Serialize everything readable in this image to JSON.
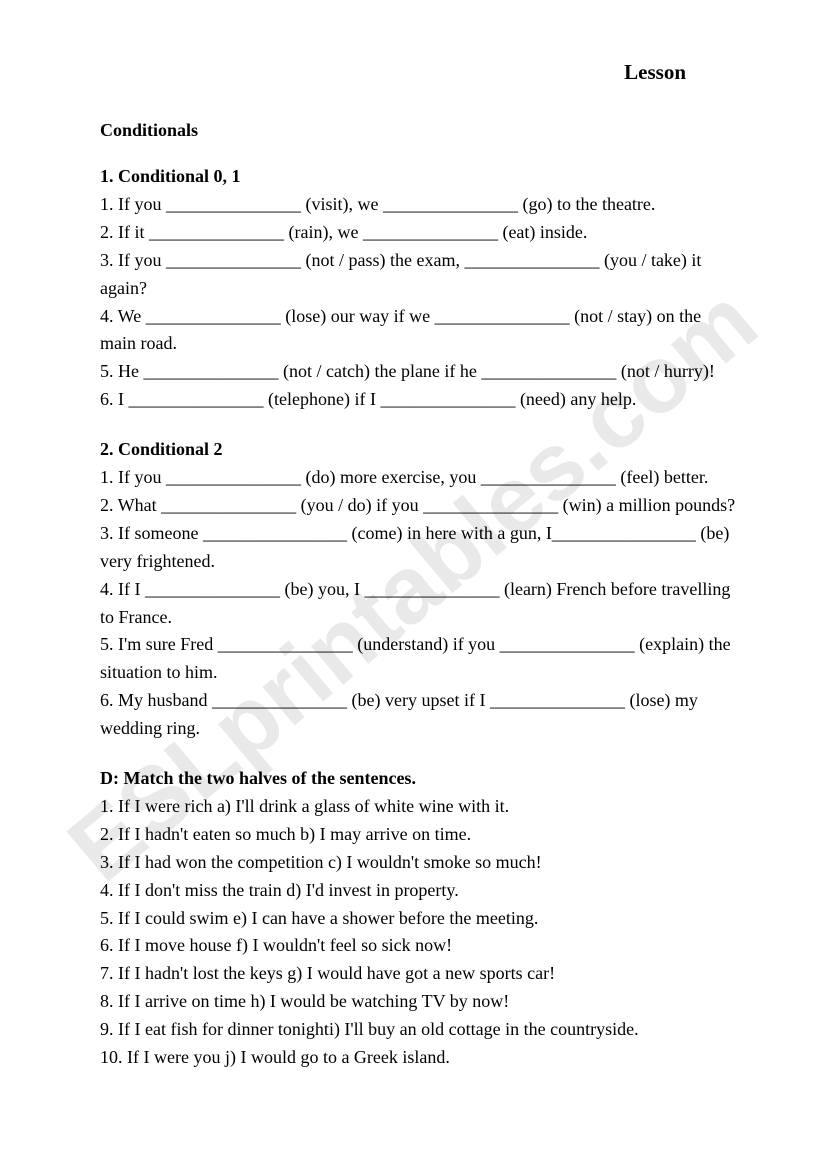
{
  "watermark": "ESLprintables.com",
  "title": "Lesson",
  "subtitle": "Conditionals",
  "section1": {
    "heading": "1. Conditional 0, 1",
    "lines": [
      "1. If you _______________ (visit), we _______________ (go) to the theatre.",
      "2. If it _______________ (rain), we _______________ (eat) inside.",
      "3. If you _______________ (not / pass) the exam, _______________ (you / take) it again?",
      "4. We _______________ (lose) our way if we _______________ (not / stay) on the main road.",
      "5. He _______________ (not / catch) the plane if he _______________ (not / hurry)!",
      "6. I _______________ (telephone) if I _______________ (need) any help."
    ]
  },
  "section2": {
    "heading": "2. Conditional 2",
    "lines": [
      "1. If you _______________ (do) more exercise, you _______________ (feel) better.",
      "2. What _______________ (you / do) if you _______________ (win) a million pounds?",
      "3. If someone ________________ (come) in here with a gun, I________________ (be) very frightened.",
      "4. If I _______________ (be) you, I _______________ (learn) French before travelling to France.",
      "5. I'm sure Fred _______________ (understand) if you _______________ (explain) the situation to him.",
      "6. My husband _______________ (be) very upset if I _______________ (lose) my wedding ring."
    ]
  },
  "section3": {
    "heading": "D: Match the two halves of the sentences.",
    "lines": [
      "1. If I were rich a) I'll drink a glass of white wine with it.",
      "2. If I hadn't eaten so much b) I may arrive on time.",
      "3. If I had won the competition c) I wouldn't smoke so much!",
      "4. If I don't miss the train d) I'd invest in property.",
      "5. If I could swim e) I can have a shower before the meeting.",
      "6. If I move house f) I wouldn't feel so sick now!",
      "7. If I hadn't lost the keys g) I would have got a new sports car!",
      "8. If I arrive on time h) I would be watching TV by now!",
      "9. If I eat fish for dinner tonighti) I'll buy an old cottage in the countryside.",
      "10. If I were you j) I would go to a Greek island."
    ]
  }
}
